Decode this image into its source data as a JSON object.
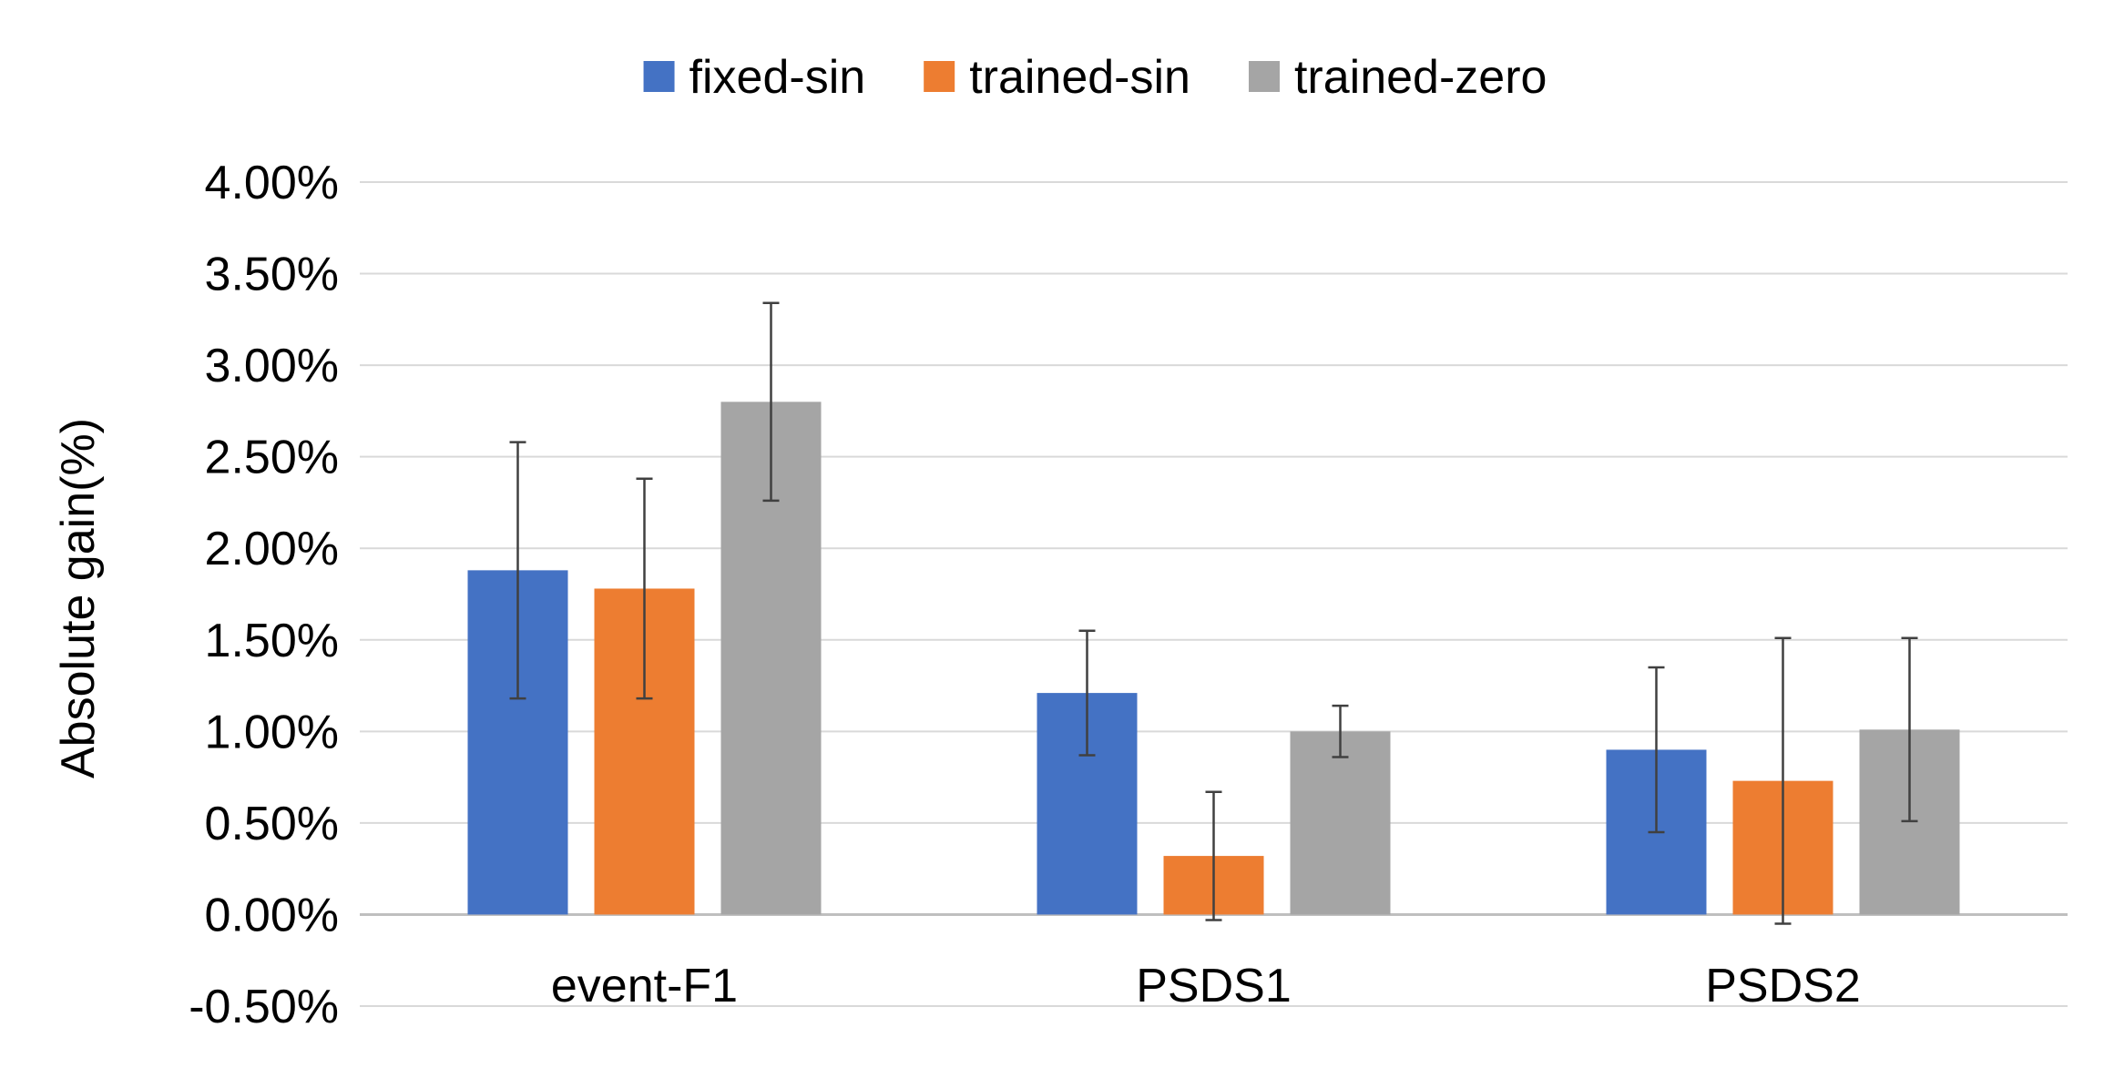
{
  "chart_data": {
    "type": "bar",
    "title": "",
    "xlabel": "",
    "ylabel": "Absolute gain(%)",
    "categories": [
      "event-F1",
      "PSDS1",
      "PSDS2"
    ],
    "yticks": [
      "-0.50%",
      "0.00%",
      "0.50%",
      "1.00%",
      "1.50%",
      "2.00%",
      "2.50%",
      "3.00%",
      "3.50%",
      "4.00%"
    ],
    "ylim": [
      -0.5,
      4.0
    ],
    "grid": true,
    "legend_position": "top-center",
    "series": [
      {
        "name": "fixed-sin",
        "color": "#4472C4",
        "values": [
          1.88,
          1.21,
          0.9
        ],
        "err_low": [
          1.18,
          0.87,
          0.45
        ],
        "err_high": [
          2.58,
          1.55,
          1.35
        ]
      },
      {
        "name": "trained-sin",
        "color": "#ED7D31",
        "values": [
          1.78,
          0.32,
          0.73
        ],
        "err_low": [
          1.18,
          -0.03,
          -0.05
        ],
        "err_high": [
          2.38,
          0.67,
          1.51
        ]
      },
      {
        "name": "trained-zero",
        "color": "#A5A5A5",
        "values": [
          2.8,
          1.0,
          1.01
        ],
        "err_low": [
          2.26,
          0.86,
          0.51
        ],
        "err_high": [
          3.34,
          1.14,
          1.51
        ]
      }
    ]
  }
}
